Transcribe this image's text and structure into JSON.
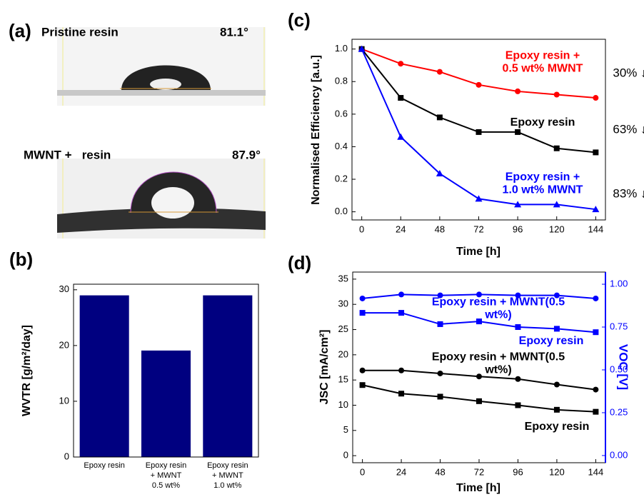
{
  "photo_panel": {
    "panel_label": "(a)",
    "images": [
      {
        "label": "Pristine resin",
        "angle": "81.1°"
      },
      {
        "label": "MWNT +   resin",
        "angle": "87.9°"
      }
    ]
  },
  "chart_data": [
    {
      "panel_label": "(b)",
      "type": "bar",
      "ylabel": "WVTR [g/m²/day]",
      "categories": [
        "Epoxy resin",
        "Epoxy resin\n+ MWNT\n0.5 wt%",
        "Epoxy resin\n+ MWNT\n1.0 wt%"
      ],
      "values": [
        29,
        19.1,
        29
      ],
      "color": "#000080",
      "ylim": [
        0,
        31
      ],
      "yticks": [
        0,
        10,
        20,
        30
      ]
    },
    {
      "panel_label": "(c)",
      "type": "line",
      "xlabel": "Time [h]",
      "ylabel": "Normalised Efficiency [a.u.]",
      "x": [
        0,
        24,
        48,
        72,
        96,
        120,
        144
      ],
      "xlim": [
        -6,
        150
      ],
      "xticks": [
        0,
        24,
        48,
        72,
        96,
        120,
        144
      ],
      "ylim": [
        -0.05,
        1.06
      ],
      "yticks": [
        {
          "value": 0,
          "label": "0.0"
        },
        0.2,
        0.4,
        0.6,
        0.8,
        {
          "value": 1,
          "label": "1.0"
        }
      ],
      "series": [
        {
          "name": "Epoxy resin +\n0.5 wt% MWNT",
          "color": "#ff0000",
          "marker": "circle",
          "values": [
            1.0,
            0.91,
            0.86,
            0.78,
            0.74,
            0.72,
            0.7
          ]
        },
        {
          "name": "Epoxy resin",
          "color": "#000000",
          "marker": "square",
          "values": [
            1.0,
            0.7,
            0.58,
            0.49,
            0.49,
            0.39,
            0.365
          ]
        },
        {
          "name": "Epoxy resin +\n1.0 wt% MWNT",
          "color": "#0000ff",
          "marker": "triangle",
          "values": [
            1.0,
            0.46,
            0.235,
            0.08,
            0.045,
            0.045,
            0.015
          ]
        }
      ],
      "annotations": [
        "30% ↓",
        "63% ↓",
        "83% ↓"
      ]
    },
    {
      "panel_label": "(d)",
      "type": "line",
      "xlabel": "Time [h]",
      "ylabel": "JSC [mA/cm²]",
      "y2label": "VOC [V]",
      "y2color": "#0000ff",
      "x": [
        0,
        24,
        48,
        72,
        96,
        120,
        144
      ],
      "xlim": [
        -6,
        150
      ],
      "xticks": [
        0,
        24,
        48,
        72,
        96,
        120,
        144
      ],
      "ylim": [
        -1.4,
        36.4
      ],
      "yticks": [
        0,
        5,
        10,
        15,
        20,
        25,
        30,
        35
      ],
      "y2lim": [
        -0.042,
        1.071
      ],
      "y2ticks": [
        {
          "value": 0,
          "label": "0.00"
        },
        {
          "value": 0.25,
          "label": "0.25"
        },
        {
          "value": 0.5,
          "label": "0.50"
        },
        {
          "value": 0.75,
          "label": "0.75"
        },
        {
          "value": 1,
          "label": "1.00"
        }
      ],
      "series": [
        {
          "name": "Epoxy resin + MWNT(0.5 wt%)",
          "color": "#0000ff",
          "marker": "circle",
          "axis": "y2",
          "values": [
            0.917,
            0.94,
            0.935,
            0.94,
            0.935,
            0.935,
            0.917
          ]
        },
        {
          "name": "Epoxy resin",
          "color": "#0000ff",
          "marker": "square",
          "axis": "y2",
          "values": [
            0.833,
            0.833,
            0.767,
            0.783,
            0.75,
            0.74,
            0.72
          ]
        },
        {
          "name": "Epoxy resin + MWNT(0.5 wt%)",
          "color": "#000000",
          "marker": "circle",
          "values": [
            16.9,
            16.9,
            16.3,
            15.7,
            15.2,
            14.1,
            13.1
          ]
        },
        {
          "name": "Epoxy resin",
          "color": "#000000",
          "marker": "square",
          "values": [
            14.0,
            12.3,
            11.7,
            10.8,
            10.0,
            9.1,
            8.7
          ]
        }
      ]
    }
  ]
}
